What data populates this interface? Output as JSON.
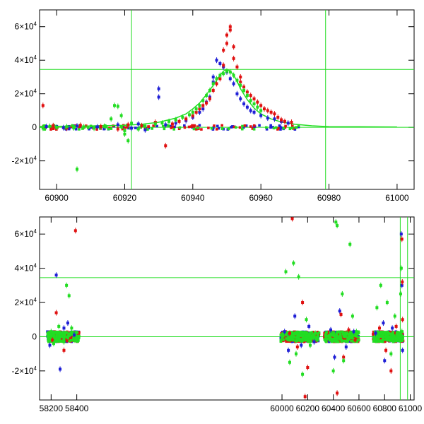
{
  "chart_data": [
    {
      "type": "scatter",
      "xlim": [
        60895,
        61005
      ],
      "ylim": [
        -37000,
        70000
      ],
      "x_ticks": [
        60900,
        60920,
        60940,
        60960,
        60980,
        61000
      ],
      "x_tick_labels": [
        "60900",
        "60920",
        "60940",
        "60960",
        "60980",
        "61000"
      ],
      "y_ticks": [
        -20000,
        0,
        20000,
        40000,
        60000
      ],
      "y_tick_labels": [
        {
          "mant": "-2×10",
          "exp": "4"
        },
        {
          "mant": "0",
          "exp": ""
        },
        {
          "mant": "2×10",
          "exp": "4"
        },
        {
          "mant": "4×10",
          "exp": "4"
        },
        {
          "mant": "6×10",
          "exp": "4"
        }
      ],
      "reference_lines": {
        "vertical_x": [
          60922,
          60979
        ],
        "horizontal_y": [
          0,
          34500
        ]
      },
      "colors": {
        "blue": "#1f1fd6",
        "red": "#e01010",
        "green": "#22dd22",
        "guide": "#22dd22"
      },
      "model_curve": {
        "color": "#22dd22",
        "x": [
          60895,
          60910,
          60920,
          60925,
          60930,
          60935,
          60938,
          60940,
          60942,
          60944,
          60946,
          60948,
          60949,
          60950,
          60951,
          60952,
          60953,
          60954,
          60956,
          60958,
          60960,
          60963,
          60966,
          60970,
          60975,
          60980,
          61000
        ],
        "y": [
          500,
          800,
          1200,
          1800,
          3000,
          5500,
          8000,
          11000,
          14500,
          19500,
          25000,
          31000,
          33500,
          34500,
          33500,
          31000,
          27500,
          23000,
          16500,
          11500,
          8000,
          5000,
          3200,
          1800,
          900,
          400,
          200
        ]
      },
      "series": [
        {
          "name": "",
          "color": "#1f1fd6",
          "points": [
            [
              60897,
              500
            ],
            [
              60902,
              -200
            ],
            [
              60906,
              800
            ],
            [
              60912,
              300
            ],
            [
              60918,
              1500
            ],
            [
              60922,
              -500
            ],
            [
              60924,
              2000
            ],
            [
              60926,
              -1500
            ],
            [
              60930,
              23000
            ],
            [
              60930,
              18000
            ],
            [
              60932,
              1500
            ],
            [
              60935,
              2500
            ],
            [
              60938,
              4000
            ],
            [
              60940,
              6000
            ],
            [
              60942,
              9000
            ],
            [
              60943,
              11000
            ],
            [
              60944,
              15000
            ],
            [
              60945,
              18000
            ],
            [
              60946,
              27000
            ],
            [
              60946,
              30000
            ],
            [
              60947,
              40000
            ],
            [
              60948,
              38000
            ],
            [
              60949,
              36000
            ],
            [
              60950,
              33000
            ],
            [
              60951,
              29000
            ],
            [
              60952,
              26000
            ],
            [
              60953,
              20000
            ],
            [
              60954,
              17000
            ],
            [
              60955,
              14000
            ],
            [
              60956,
              12000
            ],
            [
              60957,
              10000
            ],
            [
              60958,
              9000
            ],
            [
              60960,
              7000
            ],
            [
              60962,
              5500
            ],
            [
              60964,
              5000
            ],
            [
              60966,
              3500
            ],
            [
              60968,
              2500
            ]
          ]
        },
        {
          "name": "",
          "color": "#e01010",
          "points": [
            [
              60896,
              13000
            ],
            [
              60899,
              1000
            ],
            [
              60903,
              -500
            ],
            [
              60907,
              1200
            ],
            [
              60913,
              500
            ],
            [
              60918,
              -1000
            ],
            [
              60921,
              1500
            ],
            [
              60925,
              1000
            ],
            [
              60929,
              3000
            ],
            [
              60932,
              -11000
            ],
            [
              60934,
              2000
            ],
            [
              60936,
              3500
            ],
            [
              60938,
              5000
            ],
            [
              60940,
              7000
            ],
            [
              60941,
              9000
            ],
            [
              60942,
              11000
            ],
            [
              60943,
              13000
            ],
            [
              60944,
              14500
            ],
            [
              60945,
              17000
            ],
            [
              60946,
              22000
            ],
            [
              60947,
              26000
            ],
            [
              60948,
              29000
            ],
            [
              60949,
              37000
            ],
            [
              60949,
              46000
            ],
            [
              60950,
              50000
            ],
            [
              60950,
              55000
            ],
            [
              60951,
              58000
            ],
            [
              60951,
              60000
            ],
            [
              60952,
              48000
            ],
            [
              60952,
              41000
            ],
            [
              60953,
              36000
            ],
            [
              60954,
              30000
            ],
            [
              60954,
              27000
            ],
            [
              60955,
              24000
            ],
            [
              60956,
              21000
            ],
            [
              60957,
              19000
            ],
            [
              60958,
              17000
            ],
            [
              60959,
              15000
            ],
            [
              60960,
              13000
            ],
            [
              60961,
              11000
            ],
            [
              60962,
              10000
            ],
            [
              60963,
              9000
            ],
            [
              60964,
              8000
            ],
            [
              60965,
              6000
            ],
            [
              60966,
              4500
            ],
            [
              60967,
              3500
            ],
            [
              60969,
              3000
            ]
          ]
        },
        {
          "name": "",
          "color": "#22dd22",
          "points": [
            [
              60896,
              -500
            ],
            [
              60898,
              600
            ],
            [
              60900,
              0
            ],
            [
              60903,
              400
            ],
            [
              60905,
              -300
            ],
            [
              60906,
              -25000
            ],
            [
              60908,
              300
            ],
            [
              60911,
              -500
            ],
            [
              60914,
              600
            ],
            [
              60916,
              5000
            ],
            [
              60917,
              13000
            ],
            [
              60918,
              12500
            ],
            [
              60919,
              7000
            ],
            [
              60920,
              -2000
            ],
            [
              60920,
              -4000
            ],
            [
              60921,
              -8000
            ],
            [
              60922,
              2500
            ],
            [
              60924,
              -1000
            ],
            [
              60926,
              700
            ],
            [
              60929,
              2000
            ],
            [
              60931,
              2500
            ],
            [
              60933,
              3500
            ],
            [
              60935,
              4500
            ],
            [
              60937,
              6000
            ],
            [
              60939,
              7500
            ],
            [
              60940,
              9000
            ],
            [
              60941,
              11000
            ],
            [
              60942,
              13000
            ],
            [
              60943,
              16000
            ],
            [
              60944,
              19000
            ],
            [
              60945,
              22000
            ],
            [
              60946,
              26000
            ],
            [
              60947,
              29000
            ],
            [
              60948,
              31000
            ],
            [
              60949,
              32000
            ],
            [
              60950,
              33500
            ],
            [
              60951,
              33000
            ],
            [
              60952,
              31000
            ],
            [
              60953,
              28000
            ],
            [
              60954,
              25000
            ],
            [
              60955,
              22000
            ],
            [
              60956,
              19000
            ],
            [
              60957,
              16000
            ],
            [
              60958,
              14000
            ],
            [
              60959,
              12000
            ],
            [
              60960,
              10000
            ]
          ]
        }
      ]
    },
    {
      "type": "scatter",
      "xlim": [
        58110,
        61030
      ],
      "ylim": [
        -37000,
        70000
      ],
      "x_ticks": [
        58200,
        58400,
        60000,
        60200,
        60400,
        60600,
        60800,
        61000
      ],
      "x_tick_labels": [
        "58200",
        "58400",
        "60000",
        "60200",
        "60400",
        "60600",
        "60800",
        "61000"
      ],
      "y_ticks": [
        -20000,
        0,
        20000,
        40000,
        60000
      ],
      "y_tick_labels": [
        {
          "mant": "-2×10",
          "exp": "4"
        },
        {
          "mant": "0",
          "exp": ""
        },
        {
          "mant": "2×10",
          "exp": "4"
        },
        {
          "mant": "4×10",
          "exp": "4"
        },
        {
          "mant": "6×10",
          "exp": "4"
        }
      ],
      "reference_lines": {
        "vertical_x": [
          60922,
          60979
        ],
        "horizontal_y": [
          0,
          34500
        ]
      },
      "colors": {
        "blue": "#1f1fd6",
        "red": "#e01010",
        "green": "#22dd22",
        "guide": "#22dd22"
      },
      "series": [
        {
          "name": "",
          "color": "#1f1fd6",
          "points": [
            [
              58240,
              36000
            ],
            [
              58190,
              -5000
            ],
            [
              58270,
              -19000
            ],
            [
              58300,
              5000
            ],
            [
              58330,
              8000
            ],
            [
              58380,
              1000
            ],
            [
              60020,
              3000
            ],
            [
              60050,
              -8000
            ],
            [
              60100,
              12000
            ],
            [
              60150,
              -5000
            ],
            [
              60210,
              6000
            ],
            [
              60250,
              -3000
            ],
            [
              60380,
              4000
            ],
            [
              60410,
              -12000
            ],
            [
              60450,
              15000
            ],
            [
              60500,
              -6000
            ],
            [
              60560,
              3000
            ],
            [
              60730,
              2000
            ],
            [
              60790,
              8000
            ],
            [
              60800,
              -14000
            ],
            [
              60860,
              5000
            ],
            [
              60930,
              60000
            ],
            [
              60935,
              30000
            ],
            [
              60940,
              -8000
            ]
          ]
        },
        {
          "name": "",
          "color": "#e01010",
          "points": [
            [
              58390,
              62000
            ],
            [
              58240,
              14000
            ],
            [
              58300,
              -8000
            ],
            [
              58210,
              -2000
            ],
            [
              60080,
              69000
            ],
            [
              60120,
              -6000
            ],
            [
              60160,
              20000
            ],
            [
              60200,
              -18000
            ],
            [
              60180,
              -35000
            ],
            [
              60060,
              2000
            ],
            [
              60460,
              13000
            ],
            [
              60430,
              -33000
            ],
            [
              60480,
              -12000
            ],
            [
              60520,
              4000
            ],
            [
              60570,
              -2000
            ],
            [
              60760,
              5000
            ],
            [
              60810,
              -8000
            ],
            [
              60850,
              -20000
            ],
            [
              60890,
              6000
            ],
            [
              60935,
              57000
            ],
            [
              60938,
              32000
            ],
            [
              60940,
              10000
            ]
          ]
        },
        {
          "name": "",
          "color": "#22dd22",
          "points": [
            [
              58200,
              3000
            ],
            [
              58220,
              -4000
            ],
            [
              58260,
              6000
            ],
            [
              58300,
              -3000
            ],
            [
              58320,
              30000
            ],
            [
              58340,
              24000
            ],
            [
              58360,
              5000
            ],
            [
              58380,
              -2000
            ],
            [
              60030,
              38000
            ],
            [
              60060,
              -15000
            ],
            [
              60090,
              43000
            ],
            [
              60110,
              -10000
            ],
            [
              60130,
              35000
            ],
            [
              60160,
              -22000
            ],
            [
              60190,
              10000
            ],
            [
              60220,
              -5000
            ],
            [
              60260,
              2000
            ],
            [
              60420,
              67000
            ],
            [
              60430,
              65000
            ],
            [
              60470,
              25000
            ],
            [
              60530,
              54000
            ],
            [
              60550,
              12000
            ],
            [
              60400,
              -20000
            ],
            [
              60480,
              -14000
            ],
            [
              60580,
              3000
            ],
            [
              60740,
              17000
            ],
            [
              60770,
              30000
            ],
            [
              60820,
              20000
            ],
            [
              60850,
              -10000
            ],
            [
              60880,
              12000
            ],
            [
              60925,
              25000
            ],
            [
              60930,
              40000
            ],
            [
              60935,
              3000
            ]
          ]
        }
      ]
    }
  ]
}
